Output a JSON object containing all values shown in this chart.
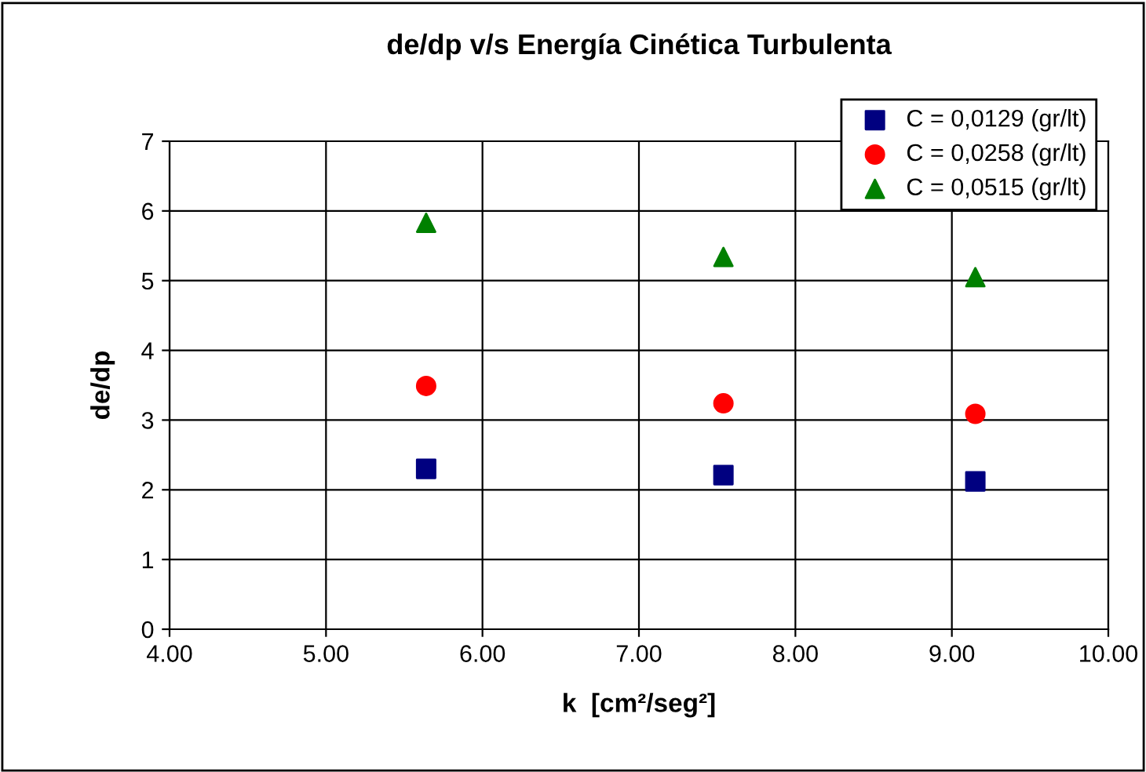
{
  "chart_data": {
    "type": "scatter",
    "title": "de/dp v/s Energía Cinética Turbulenta",
    "xlabel": "k  [cm²/seg²]",
    "ylabel": "de/dp",
    "x": [
      5.64,
      7.54,
      9.15
    ],
    "series": [
      {
        "name": "C = 0,0129 (gr/lt)",
        "color": "#000080",
        "marker": "square",
        "values": [
          2.3,
          2.21,
          2.12
        ]
      },
      {
        "name": "C = 0,0258 (gr/lt)",
        "color": "#ff0000",
        "marker": "circle",
        "values": [
          3.49,
          3.24,
          3.09
        ]
      },
      {
        "name": "C = 0,0515 (gr/lt)",
        "color": "#008000",
        "marker": "triangle",
        "values": [
          5.83,
          5.34,
          5.05
        ]
      }
    ],
    "xlim": [
      4,
      10
    ],
    "xticks": [
      {
        "value": 4,
        "label": "4.00"
      },
      {
        "value": 5,
        "label": "5.00"
      },
      {
        "value": 6,
        "label": "6.00"
      },
      {
        "value": 7,
        "label": "7.00"
      },
      {
        "value": 8,
        "label": "8.00"
      },
      {
        "value": 9,
        "label": "9.00"
      },
      {
        "value": 10,
        "label": "10.00"
      }
    ],
    "ylim": [
      0,
      7
    ],
    "yticks": [
      0,
      1,
      2,
      3,
      4,
      5,
      6,
      7
    ],
    "grid": true,
    "legend": "top right"
  }
}
